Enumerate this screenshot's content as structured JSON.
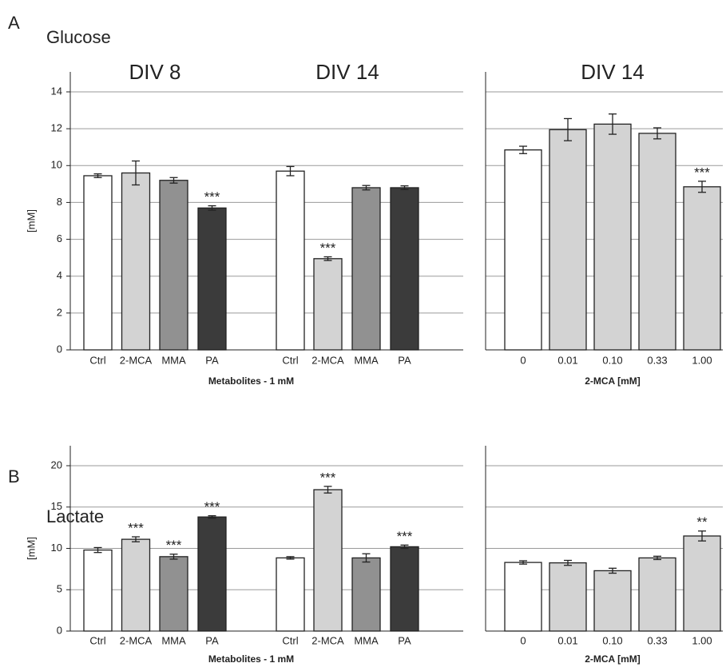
{
  "chart_data": [
    {
      "type": "bar",
      "panel_label": "A",
      "title": "Glucose",
      "groups": [
        "DIV 8",
        "DIV 14"
      ],
      "categories": [
        "Ctrl",
        "2-MCA",
        "MMA",
        "PA",
        "Ctrl",
        "2-MCA",
        "MMA",
        "PA"
      ],
      "values": [
        9.45,
        9.6,
        9.2,
        7.7,
        9.7,
        4.95,
        8.8,
        8.8
      ],
      "errors": [
        0.1,
        0.65,
        0.15,
        0.12,
        0.25,
        0.1,
        0.12,
        0.1
      ],
      "significance": [
        null,
        null,
        null,
        "***",
        null,
        "***",
        null,
        null
      ],
      "colors": [
        "#ffffff",
        "#d3d3d3",
        "#919191",
        "#3b3b3b",
        "#ffffff",
        "#d3d3d3",
        "#919191",
        "#3b3b3b"
      ],
      "ylabel": "[mM]",
      "xlabel": "Metabolites - 1 mM",
      "ylim": [
        0,
        14
      ],
      "yticks": [
        0,
        2,
        4,
        6,
        8,
        10,
        12,
        14
      ],
      "grid": true
    },
    {
      "type": "bar",
      "groups": [
        "DIV 14"
      ],
      "categories": [
        "0",
        "0.01",
        "0.10",
        "0.33",
        "1.00"
      ],
      "values": [
        10.85,
        11.95,
        12.25,
        11.75,
        8.85
      ],
      "errors": [
        0.2,
        0.6,
        0.55,
        0.3,
        0.3
      ],
      "significance": [
        null,
        null,
        null,
        null,
        "***"
      ],
      "colors": [
        "#ffffff",
        "#d3d3d3",
        "#d3d3d3",
        "#d3d3d3",
        "#d3d3d3"
      ],
      "xlabel": "2-MCA [mM]",
      "ylim": [
        0,
        14
      ],
      "gridlines": [
        2,
        4,
        6,
        8,
        10,
        12,
        14
      ],
      "grid": true
    },
    {
      "type": "bar",
      "panel_label": "B",
      "title": "Lactate",
      "categories": [
        "Ctrl",
        "2-MCA",
        "MMA",
        "PA",
        "Ctrl",
        "2-MCA",
        "MMA",
        "PA"
      ],
      "values": [
        9.8,
        11.1,
        9.0,
        13.8,
        8.85,
        17.1,
        8.85,
        10.2
      ],
      "errors": [
        0.3,
        0.3,
        0.3,
        0.15,
        0.15,
        0.4,
        0.5,
        0.2
      ],
      "significance": [
        null,
        "***",
        "***",
        "***",
        null,
        "***",
        null,
        "***"
      ],
      "colors": [
        "#ffffff",
        "#d3d3d3",
        "#919191",
        "#3b3b3b",
        "#ffffff",
        "#d3d3d3",
        "#919191",
        "#3b3b3b"
      ],
      "ylabel": "[mM]",
      "xlabel": "Metabolites - 1 mM",
      "ylim": [
        0,
        20
      ],
      "yticks": [
        0,
        5,
        10,
        15,
        20
      ],
      "grid": true
    },
    {
      "type": "bar",
      "categories": [
        "0",
        "0.01",
        "0.10",
        "0.33",
        "1.00"
      ],
      "values": [
        8.3,
        8.25,
        7.3,
        8.85,
        11.5
      ],
      "errors": [
        0.2,
        0.3,
        0.3,
        0.2,
        0.6
      ],
      "significance": [
        null,
        null,
        null,
        null,
        "**"
      ],
      "colors": [
        "#ffffff",
        "#d3d3d3",
        "#d3d3d3",
        "#d3d3d3",
        "#d3d3d3"
      ],
      "xlabel": "2-MCA [mM]",
      "ylim": [
        0,
        20
      ],
      "gridlines": [
        5,
        10,
        15,
        20
      ],
      "grid": true
    }
  ]
}
